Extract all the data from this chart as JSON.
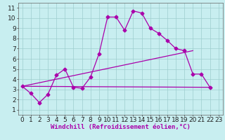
{
  "xlabel": "Windchill (Refroidissement éolien,°C)",
  "bg_color": "#c8eef0",
  "line_color": "#aa00aa",
  "grid_color": "#9ecece",
  "xlim": [
    -0.5,
    23.5
  ],
  "ylim": [
    0.5,
    11.5
  ],
  "xticks": [
    0,
    1,
    2,
    3,
    4,
    5,
    6,
    7,
    8,
    9,
    10,
    11,
    12,
    13,
    14,
    15,
    16,
    17,
    18,
    19,
    20,
    21,
    22,
    23
  ],
  "yticks": [
    1,
    2,
    3,
    4,
    5,
    6,
    7,
    8,
    9,
    10,
    11
  ],
  "main_x": [
    0,
    1,
    2,
    3,
    4,
    5,
    6,
    7,
    8,
    9,
    10,
    11,
    12,
    13,
    14,
    15,
    16,
    17,
    18,
    19,
    20,
    21,
    22
  ],
  "main_y": [
    3.3,
    2.6,
    1.7,
    2.5,
    4.4,
    5.0,
    3.2,
    3.1,
    4.2,
    6.5,
    10.1,
    10.1,
    8.8,
    10.7,
    10.5,
    9.0,
    8.5,
    7.8,
    7.0,
    6.8,
    4.5,
    4.5,
    3.2
  ],
  "upper_line_x": [
    0,
    20
  ],
  "upper_line_y": [
    3.3,
    6.8
  ],
  "lower_line_x": [
    0,
    22
  ],
  "lower_line_y": [
    3.3,
    3.2
  ],
  "marker_size": 2.5,
  "line_width": 0.9,
  "font_size": 6.5,
  "xlabel_fontsize": 6.5
}
